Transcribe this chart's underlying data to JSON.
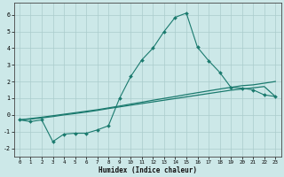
{
  "xlabel": "Humidex (Indice chaleur)",
  "background_color": "#cce8e8",
  "grid_color": "#aacccc",
  "line_color": "#1a7a6e",
  "xlim": [
    -0.5,
    23.5
  ],
  "ylim": [
    -2.5,
    6.7
  ],
  "xticks": [
    0,
    1,
    2,
    3,
    4,
    5,
    6,
    7,
    8,
    9,
    10,
    11,
    12,
    13,
    14,
    15,
    16,
    17,
    18,
    19,
    20,
    21,
    22,
    23
  ],
  "yticks": [
    -2,
    -1,
    0,
    1,
    2,
    3,
    4,
    5,
    6
  ],
  "line1_x": [
    0,
    1,
    2,
    3,
    4,
    5,
    6,
    7,
    8,
    9,
    10,
    11,
    12,
    13,
    14,
    15,
    16,
    17,
    18,
    19,
    20,
    21,
    22,
    23
  ],
  "line1_y": [
    -0.3,
    -0.4,
    -0.3,
    -1.6,
    -1.15,
    -1.1,
    -1.1,
    -0.9,
    -0.65,
    1.0,
    2.3,
    3.3,
    4.0,
    5.0,
    5.85,
    6.1,
    4.05,
    3.25,
    2.55,
    1.65,
    1.6,
    1.5,
    1.2,
    1.1
  ],
  "line2_x": [
    0,
    1,
    2,
    3,
    4,
    5,
    6,
    7,
    8,
    9,
    10,
    11,
    12,
    13,
    14,
    15,
    16,
    17,
    18,
    19,
    20,
    21,
    22,
    23
  ],
  "line2_y": [
    -0.3,
    -0.22,
    -0.14,
    -0.05,
    0.04,
    0.13,
    0.22,
    0.31,
    0.42,
    0.53,
    0.65,
    0.76,
    0.88,
    0.99,
    1.1,
    1.22,
    1.33,
    1.44,
    1.55,
    1.65,
    1.75,
    1.8,
    1.9,
    2.0
  ],
  "line3_x": [
    0,
    1,
    2,
    3,
    4,
    5,
    6,
    7,
    8,
    9,
    10,
    11,
    12,
    13,
    14,
    15,
    16,
    17,
    18,
    19,
    20,
    21,
    22,
    23
  ],
  "line3_y": [
    -0.3,
    -0.25,
    -0.18,
    -0.1,
    0.0,
    0.08,
    0.17,
    0.27,
    0.38,
    0.48,
    0.58,
    0.68,
    0.78,
    0.88,
    0.98,
    1.08,
    1.18,
    1.28,
    1.38,
    1.48,
    1.55,
    1.62,
    1.7,
    1.1
  ]
}
